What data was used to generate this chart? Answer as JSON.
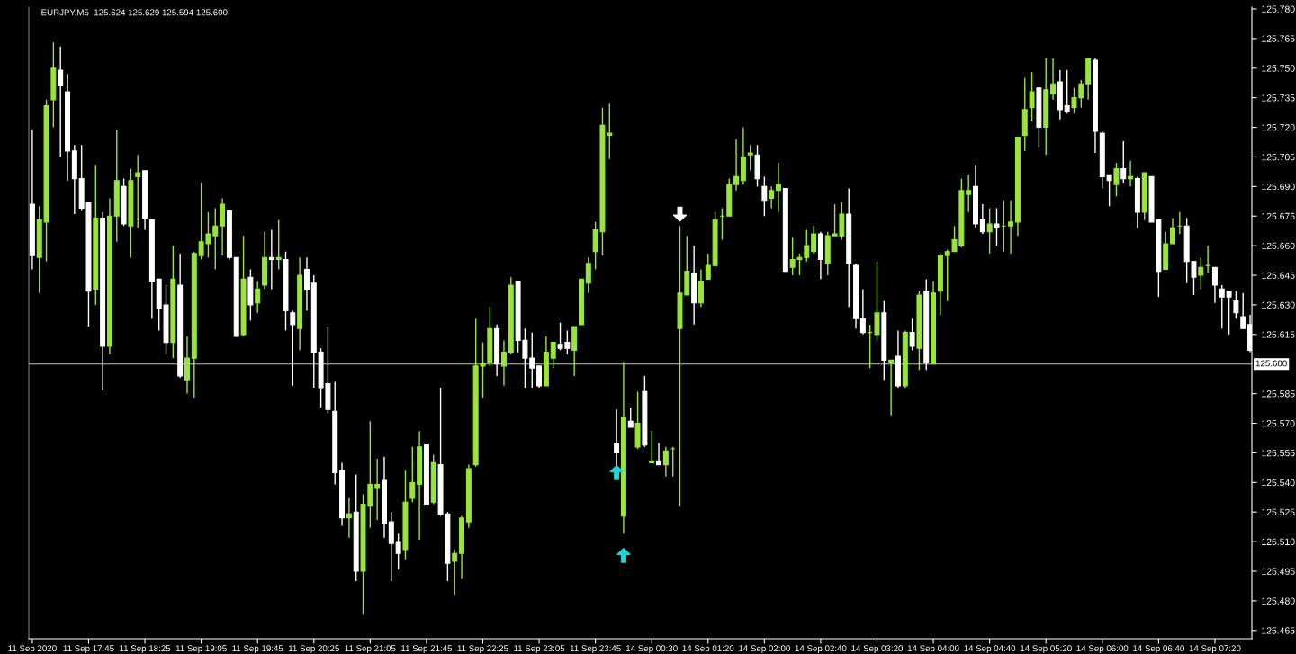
{
  "chart_data": {
    "type": "candlestick",
    "title": "EURJPY,M5  125.624 125.629 125.594 125.600",
    "categories": [
      "11 Sep 2020",
      null,
      null,
      null,
      null,
      null,
      null,
      null,
      "11 Sep 17:45",
      null,
      null,
      null,
      null,
      null,
      null,
      null,
      "11 Sep 18:25",
      null,
      null,
      null,
      null,
      null,
      null,
      null,
      "11 Sep 19:05",
      null,
      null,
      null,
      null,
      null,
      null,
      null,
      "11 Sep 19:45",
      null,
      null,
      null,
      null,
      null,
      null,
      null,
      "11 Sep 20:25",
      null,
      null,
      null,
      null,
      null,
      null,
      null,
      "11 Sep 21:05",
      null,
      null,
      null,
      null,
      null,
      null,
      null,
      "11 Sep 21:45",
      null,
      null,
      null,
      null,
      null,
      null,
      null,
      "11 Sep 22:25",
      null,
      null,
      null,
      null,
      null,
      null,
      null,
      "11 Sep 23:05",
      null,
      null,
      null,
      null,
      null,
      null,
      null,
      "11 Sep 23:45",
      null,
      null,
      null,
      null,
      null,
      null,
      null,
      "14 Sep 00:30",
      null,
      null,
      null,
      null,
      null,
      null,
      null,
      "14 Sep 01:20",
      null,
      null,
      null,
      null,
      null,
      null,
      null,
      "14 Sep 02:00",
      null,
      null,
      null,
      null,
      null,
      null,
      null,
      "14 Sep 02:40",
      null,
      null,
      null,
      null,
      null,
      null,
      null,
      "14 Sep 03:20",
      null,
      null,
      null,
      null,
      null,
      null,
      null,
      "14 Sep 04:00",
      null,
      null,
      null,
      null,
      null,
      null,
      null,
      "14 Sep 04:40",
      null,
      null,
      null,
      null,
      null,
      null,
      null,
      "14 Sep 05:20",
      null,
      null,
      null,
      null,
      null,
      null,
      null,
      "14 Sep 06:00",
      null,
      null,
      null,
      null,
      null,
      null,
      null,
      "14 Sep 06:40",
      null,
      null,
      null,
      null,
      null,
      null,
      null,
      "14 Sep 07:20",
      null,
      null,
      null,
      null,
      null
    ],
    "ohlc": [
      [
        125.681,
        125.719,
        125.648,
        125.655
      ],
      [
        125.654,
        125.68,
        125.636,
        125.673
      ],
      [
        125.672,
        125.734,
        125.652,
        125.731
      ],
      [
        125.734,
        125.763,
        125.72,
        125.75
      ],
      [
        125.749,
        125.761,
        125.705,
        125.741
      ],
      [
        125.738,
        125.747,
        125.693,
        125.708
      ],
      [
        125.708,
        125.711,
        125.676,
        125.694
      ],
      [
        125.694,
        125.711,
        125.678,
        125.679
      ],
      [
        125.682,
        125.682,
        125.619,
        125.637
      ],
      [
        125.638,
        125.701,
        125.63,
        125.674
      ],
      [
        125.674,
        125.677,
        125.587,
        125.609
      ],
      [
        125.609,
        125.684,
        125.605,
        125.675
      ],
      [
        125.675,
        125.719,
        125.662,
        125.693
      ],
      [
        125.69,
        125.694,
        125.67,
        125.671
      ],
      [
        125.67,
        125.699,
        125.654,
        125.693
      ],
      [
        125.695,
        125.706,
        125.669,
        125.697
      ],
      [
        125.698,
        125.698,
        125.668,
        125.674
      ],
      [
        125.673,
        125.673,
        125.623,
        125.642
      ],
      [
        125.643,
        125.643,
        125.617,
        125.628
      ],
      [
        125.63,
        125.64,
        125.605,
        125.611
      ],
      [
        125.611,
        125.66,
        125.603,
        125.643
      ],
      [
        125.64,
        125.656,
        125.593,
        125.594
      ],
      [
        125.592,
        125.614,
        125.585,
        125.603
      ],
      [
        125.603,
        125.657,
        125.583,
        125.656
      ],
      [
        125.655,
        125.692,
        125.653,
        125.662
      ],
      [
        125.661,
        125.677,
        125.654,
        125.666
      ],
      [
        125.665,
        125.679,
        125.648,
        125.67
      ],
      [
        125.67,
        125.684,
        125.655,
        125.681
      ],
      [
        125.678,
        125.678,
        125.653,
        125.654
      ],
      [
        125.654,
        125.654,
        125.614,
        125.614
      ],
      [
        125.615,
        125.665,
        125.614,
        125.643
      ],
      [
        125.644,
        125.648,
        125.622,
        125.63
      ],
      [
        125.631,
        125.642,
        125.626,
        125.638
      ],
      [
        125.64,
        125.667,
        125.638,
        125.654
      ],
      [
        125.654,
        125.668,
        125.638,
        125.653
      ],
      [
        125.653,
        125.673,
        125.648,
        125.654
      ],
      [
        125.653,
        125.657,
        125.617,
        125.627
      ],
      [
        125.626,
        125.627,
        125.589,
        125.62
      ],
      [
        125.618,
        125.654,
        125.607,
        125.645
      ],
      [
        125.648,
        125.654,
        125.627,
        125.638
      ],
      [
        125.641,
        125.645,
        125.588,
        125.606
      ],
      [
        125.606,
        125.608,
        125.578,
        125.588
      ],
      [
        125.59,
        125.619,
        125.575,
        125.577
      ],
      [
        125.576,
        125.591,
        125.539,
        125.545
      ],
      [
        125.546,
        125.55,
        125.518,
        125.522
      ],
      [
        125.522,
        125.532,
        125.512,
        125.524
      ],
      [
        125.525,
        125.544,
        125.49,
        125.495
      ],
      [
        125.495,
        125.534,
        125.473,
        125.529
      ],
      [
        125.528,
        125.571,
        125.517,
        125.539
      ],
      [
        125.537,
        125.552,
        125.521,
        125.539
      ],
      [
        125.541,
        125.553,
        125.512,
        125.519
      ],
      [
        125.52,
        125.525,
        125.49,
        125.509
      ],
      [
        125.51,
        125.514,
        125.496,
        125.504
      ],
      [
        125.506,
        125.546,
        125.501,
        125.53
      ],
      [
        125.532,
        125.558,
        125.53,
        125.54
      ],
      [
        125.539,
        125.566,
        125.511,
        125.558
      ],
      [
        125.559,
        125.559,
        125.529,
        125.529
      ],
      [
        125.53,
        125.554,
        125.529,
        125.55
      ],
      [
        125.549,
        125.588,
        125.523,
        125.524
      ],
      [
        125.524,
        125.525,
        125.49,
        125.499
      ],
      [
        125.5,
        125.506,
        125.483,
        125.504
      ],
      [
        125.504,
        125.523,
        125.491,
        125.522
      ],
      [
        125.52,
        125.549,
        125.517,
        125.547
      ],
      [
        125.549,
        125.623,
        125.548,
        125.599
      ],
      [
        125.599,
        125.611,
        125.583,
        125.6
      ],
      [
        125.601,
        125.629,
        125.599,
        125.618
      ],
      [
        125.618,
        125.62,
        125.594,
        125.6
      ],
      [
        125.599,
        125.612,
        125.589,
        125.606
      ],
      [
        125.606,
        125.644,
        125.605,
        125.64
      ],
      [
        125.642,
        125.642,
        125.606,
        125.612
      ],
      [
        125.612,
        125.618,
        125.588,
        125.603
      ],
      [
        125.603,
        125.616,
        125.588,
        125.598
      ],
      [
        125.599,
        125.599,
        125.588,
        125.589
      ],
      [
        125.589,
        125.614,
        125.589,
        125.606
      ],
      [
        125.603,
        125.611,
        125.598,
        125.611
      ],
      [
        125.61,
        125.621,
        125.607,
        125.608
      ],
      [
        125.611,
        125.617,
        125.605,
        125.608
      ],
      [
        125.607,
        125.619,
        125.594,
        125.619
      ],
      [
        125.62,
        125.643,
        125.62,
        125.643
      ],
      [
        125.641,
        125.654,
        125.636,
        125.651
      ],
      [
        125.657,
        125.672,
        125.648,
        125.668
      ],
      [
        125.667,
        125.73,
        125.655,
        125.721
      ],
      [
        125.716,
        125.732,
        125.704,
        125.717
      ],
      [
        125.56,
        125.577,
        125.548,
        125.555
      ],
      [
        125.523,
        125.601,
        125.514,
        125.573
      ],
      [
        125.571,
        125.578,
        125.568,
        125.568
      ],
      [
        125.558,
        125.586,
        125.557,
        125.57
      ],
      [
        125.586,
        125.594,
        125.558,
        125.559
      ],
      [
        125.55,
        125.566,
        125.55,
        125.551
      ],
      [
        125.551,
        125.56,
        125.549,
        125.549
      ],
      [
        125.549,
        125.558,
        125.543,
        125.556
      ],
      [
        125.557,
        125.558,
        125.543,
        125.557
      ],
      [
        125.618,
        125.67,
        125.528,
        125.636
      ],
      [
        125.635,
        125.665,
        125.635,
        125.647
      ],
      [
        125.646,
        125.66,
        125.62,
        125.631
      ],
      [
        125.631,
        125.648,
        125.629,
        125.642
      ],
      [
        125.643,
        125.656,
        125.643,
        125.65
      ],
      [
        125.65,
        125.677,
        125.649,
        125.673
      ],
      [
        125.675,
        125.679,
        125.663,
        125.675
      ],
      [
        125.675,
        125.694,
        125.675,
        125.691
      ],
      [
        125.691,
        125.714,
        125.688,
        125.695
      ],
      [
        125.693,
        125.72,
        125.691,
        125.705
      ],
      [
        125.706,
        125.711,
        125.698,
        125.707
      ],
      [
        125.706,
        125.711,
        125.69,
        125.694
      ],
      [
        125.69,
        125.695,
        125.675,
        125.683
      ],
      [
        125.684,
        125.69,
        125.679,
        125.688
      ],
      [
        125.688,
        125.702,
        125.677,
        125.691
      ],
      [
        125.689,
        125.689,
        125.647,
        125.647
      ],
      [
        125.649,
        125.664,
        125.645,
        125.653
      ],
      [
        125.653,
        125.656,
        125.645,
        125.654
      ],
      [
        125.654,
        125.668,
        125.652,
        125.66
      ],
      [
        125.657,
        125.67,
        125.656,
        125.666
      ],
      [
        125.666,
        125.667,
        125.643,
        125.653
      ],
      [
        125.651,
        125.667,
        125.645,
        125.665
      ],
      [
        125.665,
        125.681,
        125.665,
        125.666
      ],
      [
        125.665,
        125.682,
        125.663,
        125.676
      ],
      [
        125.676,
        125.689,
        125.629,
        125.651
      ],
      [
        125.65,
        125.651,
        125.618,
        125.623
      ],
      [
        125.623,
        125.638,
        125.615,
        125.616
      ],
      [
        125.616,
        125.62,
        125.598,
        125.616
      ],
      [
        125.615,
        125.652,
        125.612,
        125.626
      ],
      [
        125.626,
        125.632,
        125.592,
        125.602
      ],
      [
        125.601,
        125.602,
        125.574,
        125.602
      ],
      [
        125.604,
        125.617,
        125.588,
        125.589
      ],
      [
        125.589,
        125.617,
        125.588,
        125.616
      ],
      [
        125.616,
        125.623,
        125.607,
        125.609
      ],
      [
        125.608,
        125.637,
        125.597,
        125.635
      ],
      [
        125.637,
        125.643,
        125.597,
        125.601
      ],
      [
        125.6,
        125.642,
        125.6,
        125.636
      ],
      [
        125.637,
        125.656,
        125.625,
        125.655
      ],
      [
        125.655,
        125.658,
        125.632,
        125.657
      ],
      [
        125.657,
        125.67,
        125.657,
        125.663
      ],
      [
        125.66,
        125.694,
        125.659,
        125.688
      ],
      [
        125.686,
        125.696,
        125.677,
        125.688
      ],
      [
        125.69,
        125.701,
        125.669,
        125.671
      ],
      [
        125.673,
        125.681,
        125.666,
        125.667
      ],
      [
        125.667,
        125.679,
        125.656,
        125.671
      ],
      [
        125.671,
        125.679,
        125.66,
        125.669
      ],
      [
        125.67,
        125.683,
        125.657,
        125.67
      ],
      [
        125.67,
        125.683,
        125.656,
        125.672
      ],
      [
        125.672,
        125.715,
        125.665,
        125.715
      ],
      [
        125.716,
        125.745,
        125.708,
        125.729
      ],
      [
        125.73,
        125.748,
        125.723,
        125.738
      ],
      [
        125.74,
        125.74,
        125.71,
        125.72
      ],
      [
        125.72,
        125.755,
        125.706,
        125.739
      ],
      [
        125.737,
        125.755,
        125.734,
        125.742
      ],
      [
        125.743,
        125.749,
        125.724,
        125.729
      ],
      [
        125.731,
        125.749,
        125.727,
        125.728
      ],
      [
        125.73,
        125.74,
        125.727,
        125.735
      ],
      [
        125.735,
        125.744,
        125.73,
        125.742
      ],
      [
        125.742,
        125.755,
        125.734,
        125.755
      ],
      [
        125.754,
        125.755,
        125.707,
        125.718
      ],
      [
        125.717,
        125.718,
        125.689,
        125.695
      ],
      [
        125.696,
        125.696,
        125.68,
        125.693
      ],
      [
        125.691,
        125.702,
        125.685,
        125.699
      ],
      [
        125.699,
        125.713,
        125.692,
        125.694
      ],
      [
        125.694,
        125.703,
        125.69,
        125.695
      ],
      [
        125.694,
        125.695,
        125.669,
        125.677
      ],
      [
        125.677,
        125.697,
        125.673,
        125.697
      ],
      [
        125.695,
        125.695,
        125.672,
        125.672
      ],
      [
        125.673,
        125.673,
        125.634,
        125.647
      ],
      [
        125.648,
        125.667,
        125.648,
        125.661
      ],
      [
        125.661,
        125.674,
        125.661,
        125.669
      ],
      [
        125.67,
        125.677,
        125.666,
        125.67
      ],
      [
        125.67,
        125.674,
        125.641,
        125.652
      ],
      [
        125.652,
        125.652,
        125.635,
        125.644
      ],
      [
        125.645,
        125.654,
        125.638,
        125.649
      ],
      [
        125.65,
        125.66,
        125.646,
        125.65
      ],
      [
        125.649,
        125.649,
        125.631,
        125.64
      ],
      [
        125.638,
        125.64,
        125.618,
        125.634
      ],
      [
        125.637,
        125.637,
        125.615,
        125.634
      ],
      [
        125.632,
        125.637,
        125.623,
        125.626
      ],
      [
        125.624,
        125.636,
        125.618,
        125.618
      ],
      [
        125.62,
        125.625,
        125.606,
        125.607
      ]
    ],
    "colors": [
      "#ffffff",
      "#99e53a",
      "#99e53a",
      "#99e53a",
      "#ffffff",
      "#ffffff",
      "#ffffff",
      "#ffffff",
      "#ffffff",
      "#99e53a",
      "#ffffff",
      "#99e53a",
      "#99e53a",
      "#ffffff",
      "#99e53a",
      "#99e53a",
      "#ffffff",
      "#ffffff",
      "#ffffff",
      "#ffffff",
      "#99e53a",
      "#ffffff",
      "#99e53a",
      "#99e53a",
      "#99e53a",
      "#99e53a",
      "#99e53a",
      "#99e53a",
      "#ffffff",
      "#ffffff",
      "#99e53a",
      "#ffffff",
      "#99e53a",
      "#99e53a",
      "#ffffff",
      "#99e53a",
      "#ffffff",
      "#ffffff",
      "#99e53a",
      "#ffffff",
      "#ffffff",
      "#ffffff",
      "#ffffff",
      "#ffffff",
      "#ffffff",
      "#99e53a",
      "#ffffff",
      "#99e53a",
      "#99e53a",
      "#99e53a",
      "#ffffff",
      "#ffffff",
      "#ffffff",
      "#99e53a",
      "#99e53a",
      "#99e53a",
      "#ffffff",
      "#99e53a",
      "#ffffff",
      "#ffffff",
      "#99e53a",
      "#99e53a",
      "#99e53a",
      "#99e53a",
      "#99e53a",
      "#99e53a",
      "#ffffff",
      "#99e53a",
      "#99e53a",
      "#ffffff",
      "#ffffff",
      "#ffffff",
      "#ffffff",
      "#99e53a",
      "#99e53a",
      "#ffffff",
      "#ffffff",
      "#99e53a",
      "#99e53a",
      "#99e53a",
      "#99e53a",
      "#99e53a",
      "#99e53a",
      "#ffffff",
      "#99e53a",
      "#ffffff",
      "#99e53a",
      "#ffffff",
      "#99e53a",
      "#ffffff",
      "#99e53a",
      "#99e53a",
      "#99e53a",
      "#99e53a",
      "#ffffff",
      "#99e53a",
      "#99e53a",
      "#99e53a",
      "#99e53a",
      "#99e53a",
      "#99e53a",
      "#99e53a",
      "#99e53a",
      "#ffffff",
      "#ffffff",
      "#99e53a",
      "#99e53a",
      "#ffffff",
      "#99e53a",
      "#99e53a",
      "#99e53a",
      "#99e53a",
      "#ffffff",
      "#99e53a",
      "#99e53a",
      "#99e53a",
      "#ffffff",
      "#ffffff",
      "#ffffff",
      "#99e53a",
      "#99e53a",
      "#ffffff",
      "#99e53a",
      "#ffffff",
      "#99e53a",
      "#ffffff",
      "#99e53a",
      "#ffffff",
      "#99e53a",
      "#99e53a",
      "#99e53a",
      "#99e53a",
      "#99e53a",
      "#99e53a",
      "#ffffff",
      "#ffffff",
      "#99e53a",
      "#ffffff",
      "#99e53a",
      "#99e53a",
      "#99e53a",
      "#99e53a",
      "#99e53a",
      "#ffffff",
      "#99e53a",
      "#99e53a",
      "#ffffff",
      "#ffffff",
      "#99e53a",
      "#99e53a",
      "#99e53a",
      "#ffffff",
      "#ffffff",
      "#ffffff",
      "#99e53a",
      "#ffffff",
      "#99e53a",
      "#ffffff",
      "#99e53a",
      "#ffffff",
      "#ffffff",
      "#99e53a",
      "#99e53a",
      "#99e53a",
      "#ffffff",
      "#ffffff",
      "#99e53a",
      "#99e53a",
      "#ffffff",
      "#ffffff",
      "#ffffff",
      "#ffffff",
      "#ffffff",
      "#ffffff"
    ],
    "series": [
      {
        "type": "scatter",
        "color": "#22d3d3",
        "marker": "triangle",
        "values": [
          null,
          null,
          null,
          null,
          null,
          null,
          null,
          null,
          null,
          null,
          null,
          null,
          null,
          null,
          null,
          null,
          null,
          null,
          null,
          null,
          null,
          null,
          null,
          null,
          null,
          null,
          null,
          null,
          null,
          null,
          null,
          null,
          null,
          null,
          null,
          null,
          null,
          null,
          null,
          null,
          null,
          null,
          null,
          null,
          null,
          null,
          null,
          null,
          null,
          null,
          null,
          null,
          null,
          null,
          null,
          null,
          null,
          null,
          null,
          null,
          null,
          null,
          null,
          null,
          null,
          null,
          null,
          null,
          null,
          null,
          null,
          null,
          null,
          null,
          null,
          null,
          null,
          null,
          null,
          null,
          null,
          null,
          null,
          125.545,
          125.503,
          null,
          null,
          null,
          null,
          null,
          null,
          null,
          null,
          null,
          null,
          null,
          null,
          null,
          null,
          null,
          null,
          null,
          null,
          null,
          null,
          null,
          null,
          null,
          null,
          null,
          null,
          null,
          null,
          null,
          null,
          null,
          null,
          null,
          null,
          null,
          null,
          null,
          null,
          null,
          null,
          null,
          null,
          null,
          null,
          null,
          null,
          null,
          null,
          null,
          null,
          null,
          null,
          null,
          null,
          null,
          null,
          null,
          null,
          null,
          null,
          null,
          null,
          null,
          null,
          null,
          null,
          null,
          null,
          null,
          null,
          null,
          null,
          null,
          null,
          null,
          null,
          null,
          null,
          null,
          null,
          null,
          null,
          null,
          null,
          null,
          null,
          null,
          null,
          null
        ]
      },
      {
        "type": "scatter",
        "color": "#ffffff",
        "marker": "triangle",
        "values": [
          null,
          null,
          null,
          null,
          null,
          null,
          null,
          null,
          null,
          null,
          null,
          null,
          null,
          null,
          null,
          null,
          null,
          null,
          null,
          null,
          null,
          null,
          null,
          null,
          null,
          null,
          null,
          null,
          null,
          null,
          null,
          null,
          null,
          null,
          null,
          null,
          null,
          null,
          null,
          null,
          null,
          null,
          null,
          null,
          null,
          null,
          null,
          null,
          null,
          null,
          null,
          null,
          null,
          null,
          null,
          null,
          null,
          null,
          null,
          null,
          null,
          null,
          null,
          null,
          null,
          null,
          null,
          null,
          null,
          null,
          null,
          null,
          null,
          null,
          null,
          null,
          null,
          null,
          null,
          null,
          null,
          null,
          null,
          null,
          null,
          null,
          null,
          null,
          null,
          null,
          null,
          null,
          125.676,
          null,
          null,
          null,
          null,
          null,
          null,
          null,
          null,
          null,
          null,
          null,
          null,
          null,
          null,
          null,
          null,
          null,
          null,
          null,
          null,
          null,
          null,
          null,
          null,
          null,
          null,
          null,
          null,
          null,
          null,
          null,
          null,
          null,
          null,
          null,
          null,
          null,
          null,
          null,
          null,
          null,
          null,
          null,
          null,
          null,
          null,
          null,
          null,
          null,
          null,
          null,
          null,
          null,
          null,
          null,
          null,
          null,
          null,
          null,
          null,
          null,
          null,
          null,
          null,
          null,
          null,
          null,
          null,
          null,
          null,
          null,
          null,
          null,
          null,
          null,
          null,
          null,
          null,
          null,
          null,
          null
        ]
      }
    ],
    "ylim": [
      125.4608,
      125.7809
    ],
    "yticks": [
      {
        "value": 125.465,
        "label": "125.465"
      },
      {
        "value": 125.48,
        "label": "125.480"
      },
      {
        "value": 125.495,
        "label": "125.495"
      },
      {
        "value": 125.51,
        "label": "125.510"
      },
      {
        "value": 125.525,
        "label": "125.525"
      },
      {
        "value": 125.54,
        "label": "125.540"
      },
      {
        "value": 125.555,
        "label": "125.555"
      },
      {
        "value": 125.57,
        "label": "125.570"
      },
      {
        "value": 125.585,
        "label": "125.585"
      },
      {
        "value": 125.615,
        "label": "125.615"
      },
      {
        "value": 125.63,
        "label": "125.630"
      },
      {
        "value": 125.645,
        "label": "125.645"
      },
      {
        "value": 125.66,
        "label": "125.660"
      },
      {
        "value": 125.675,
        "label": "125.675"
      },
      {
        "value": 125.69,
        "label": "125.690"
      },
      {
        "value": 125.705,
        "label": "125.705"
      },
      {
        "value": 125.72,
        "label": "125.720"
      },
      {
        "value": 125.735,
        "label": "125.735"
      },
      {
        "value": 125.75,
        "label": "125.750"
      },
      {
        "value": 125.765,
        "label": "125.765"
      },
      {
        "value": 125.78,
        "label": "125.780"
      }
    ],
    "ref_lines": [
      {
        "axis": "y",
        "value": 125.6,
        "label": "125.600",
        "color": "#c0c0c0"
      }
    ],
    "grid": false
  }
}
